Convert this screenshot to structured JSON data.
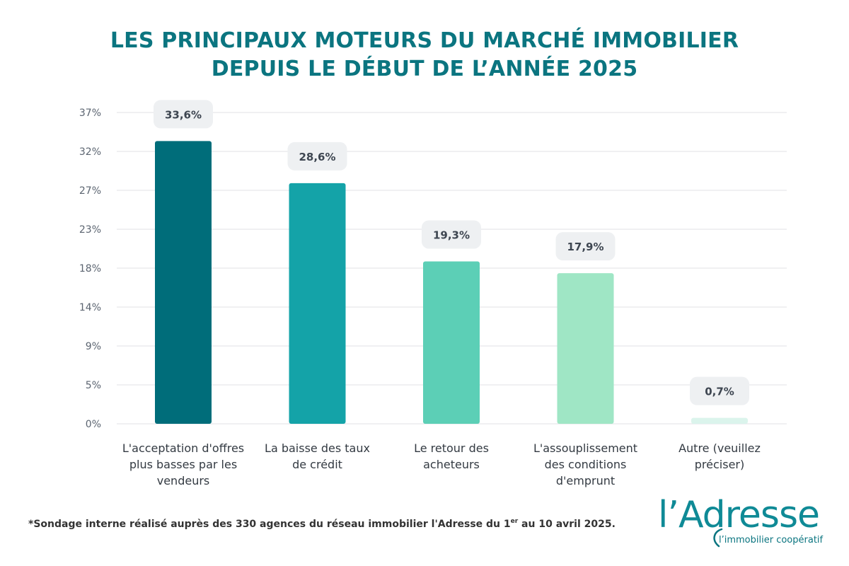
{
  "title": {
    "line1": "LES PRINCIPAUX MOTEURS DU MARCHÉ IMMOBILIER",
    "line2": "DEPUIS LE DÉBUT DE L’ANNÉE 2025"
  },
  "chart_data": {
    "type": "bar",
    "title": "LES PRINCIPAUX MOTEURS DU MARCHÉ IMMOBILIER DEPUIS LE DÉBUT DE L’ANNÉE 2025",
    "categories": [
      [
        "L'acceptation d'offres",
        "plus basses par les",
        "vendeurs"
      ],
      [
        "La baisse des taux",
        "de crédit"
      ],
      [
        "Le retour des",
        "acheteurs"
      ],
      [
        "L'assouplissement",
        "des conditions",
        "d'emprunt"
      ],
      [
        "Autre (veuillez",
        "préciser)"
      ]
    ],
    "values": [
      33.6,
      28.6,
      19.3,
      17.9,
      0.7
    ],
    "value_labels": [
      "33,6%",
      "28,6%",
      "19,3%",
      "17,9%",
      "0,7%"
    ],
    "bar_colors": [
      "#006d7a",
      "#14a3a8",
      "#5ccfb6",
      "#9fe6c5",
      "#dbf4ec"
    ],
    "y_ticks": [
      "0%",
      "5%",
      "9%",
      "14%",
      "18%",
      "23%",
      "27%",
      "32%",
      "37%"
    ],
    "ylim": [
      0,
      37
    ],
    "grid": true,
    "xlabel": "",
    "ylabel": ""
  },
  "footnote": {
    "text_before": "*Sondage interne réalisé auprès des 330 agences du réseau immobilier l'Adresse du 1",
    "superscript": "er",
    "text_after": " au 10 avril 2025."
  },
  "logo": {
    "word": "l’Adresse",
    "tagline": "l’immobilier coopératif"
  },
  "colors": {
    "title": "#0b7580",
    "grid": "#e6e8ea",
    "tick_text": "#5b6470",
    "label_bubble": "#eef0f2",
    "label_text": "#3e4651"
  }
}
